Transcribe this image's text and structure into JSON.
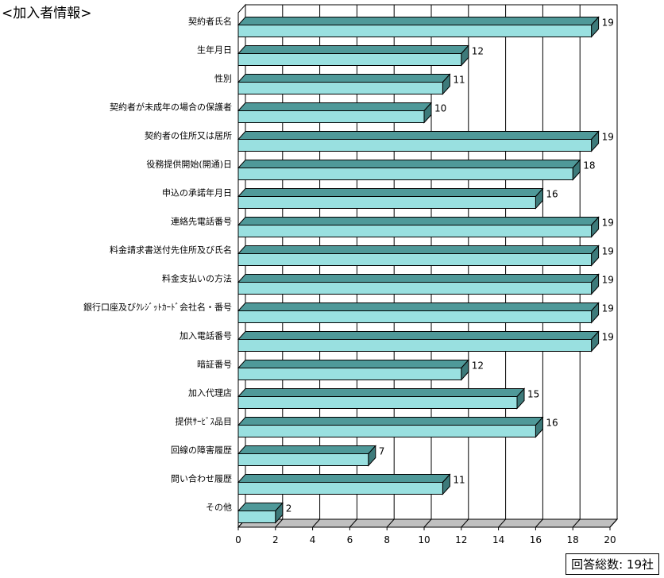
{
  "page": {
    "title": "<加入者情報>",
    "footnote": "回答総数: 19社"
  },
  "chart_data": {
    "type": "bar",
    "orientation": "horizontal",
    "style": "3d",
    "categories": [
      "契約者氏名",
      "生年月日",
      "性別",
      "契約者が未成年の場合の保護者",
      "契約者の住所又は居所",
      "役務提供開始(開通)日",
      "申込の承諾年月日",
      "連絡先電話番号",
      "料金請求書送付先住所及び氏名",
      "料金支払いの方法",
      "銀行口座及びｸﾚｼﾞｯﾄｶｰﾄﾞ会社名・番号",
      "加入電話番号",
      "暗証番号",
      "加入代理店",
      "提供ｻｰﾋﾞｽ品目",
      "回線の障害履歴",
      "問い合わせ履歴",
      "その他"
    ],
    "values": [
      19,
      12,
      11,
      10,
      19,
      18,
      16,
      19,
      19,
      19,
      19,
      19,
      12,
      15,
      16,
      7,
      11,
      2
    ],
    "xlim": [
      0,
      20
    ],
    "x_ticks": [
      0,
      2,
      4,
      6,
      8,
      10,
      12,
      14,
      16,
      18,
      20
    ],
    "grid": true,
    "colors": {
      "bar_front": "#99e0e0",
      "bar_top": "#4f9999",
      "bar_side": "#3d7a7a",
      "outline": "#000000",
      "grid": "#000000",
      "floor": "#c0c0c0"
    }
  }
}
